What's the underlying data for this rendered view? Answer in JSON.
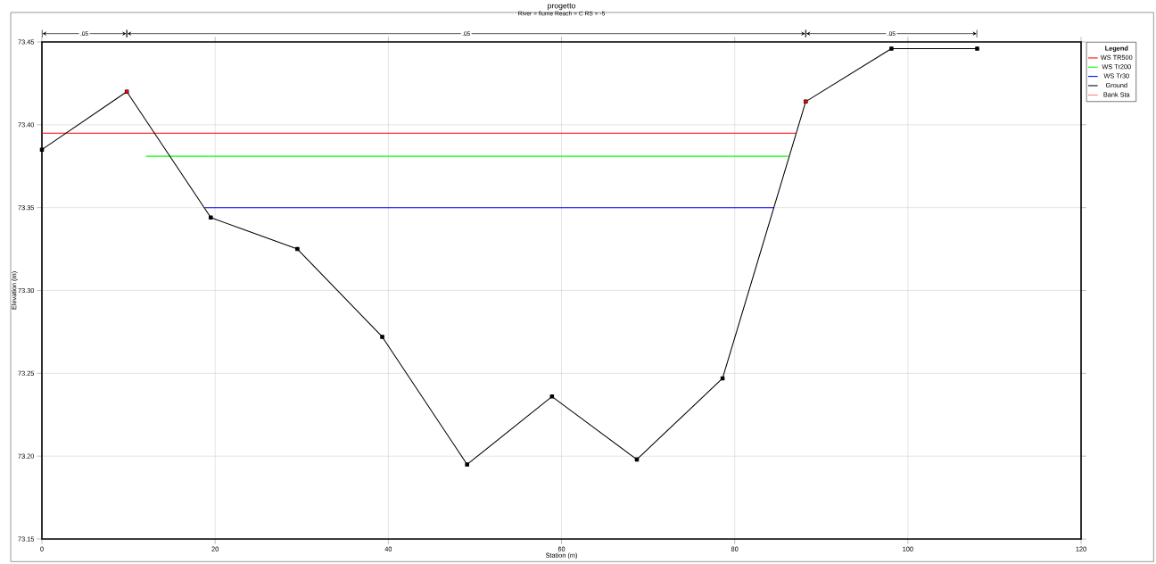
{
  "chart_data": {
    "type": "line",
    "title": "progetto",
    "subtitle": "River = fiume   Reach = C     RS = -5",
    "xlabel": "Station (m)",
    "ylabel": "Elevation (m)",
    "legend_title": "Legend",
    "xlim": [
      0,
      120
    ],
    "xticks": [
      0,
      20,
      40,
      60,
      80,
      100,
      120
    ],
    "ylim": [
      73.15,
      73.45
    ],
    "yticks": [
      73.15,
      {
        "value": 73.2,
        "label": "73.20"
      },
      73.25,
      {
        "value": 73.3,
        "label": "73.30"
      },
      73.35,
      {
        "value": 73.4,
        "label": "73.40"
      },
      73.45
    ],
    "grid": true,
    "legend": "right",
    "annotations": [
      ".05",
      ".05",
      ".05"
    ],
    "series": [
      {
        "name": "WS TR500",
        "color": "#ff0000",
        "marker": "none",
        "x": [
          0,
          87.1
        ],
        "values": [
          73.395,
          73.395
        ]
      },
      {
        "name": "WS Tr200",
        "color": "#00ff00",
        "marker": "none",
        "x": [
          12.0,
          86.2
        ],
        "values": [
          73.381,
          73.381
        ]
      },
      {
        "name": "WS Tr30",
        "color": "#0000ff",
        "marker": "none",
        "x": [
          18.8,
          84.5
        ],
        "values": [
          73.35,
          73.35
        ]
      },
      {
        "name": "Ground",
        "color": "#000000",
        "marker": "square",
        "x": [
          0,
          9.8,
          19.5,
          29.5,
          39.3,
          49.1,
          58.9,
          68.7,
          78.6,
          88.2,
          98.1,
          108.0
        ],
        "values": [
          73.385,
          73.42,
          73.344,
          73.325,
          73.272,
          73.195,
          73.236,
          73.198,
          73.247,
          73.414,
          73.446,
          73.446
        ]
      },
      {
        "name": "Bank Sta",
        "color": "#ff0000",
        "type": "scatter",
        "marker": "circle",
        "x": [
          9.8,
          88.2
        ],
        "values": [
          73.42,
          73.414
        ]
      }
    ]
  }
}
